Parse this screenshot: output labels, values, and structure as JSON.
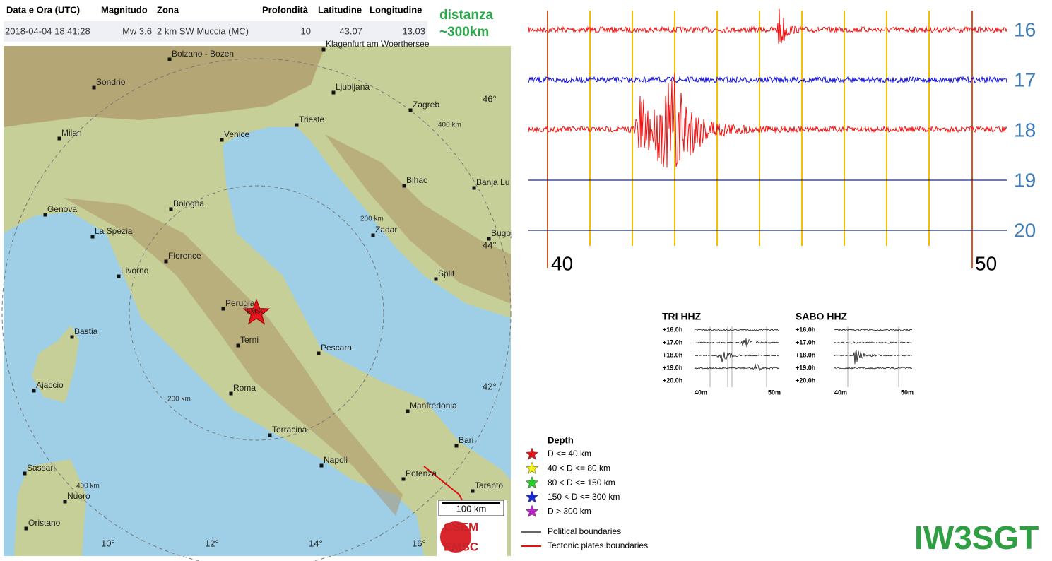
{
  "table": {
    "headers": [
      "Data e Ora (UTC)",
      "Magnitudo",
      "Zona",
      "Profondità",
      "Latitudine",
      "Longitudine"
    ],
    "rows": [
      [
        "2018-04-04 18:41:28",
        "Mw 3.6",
        "2 km SW Muccia (MC)",
        "10",
        "43.07",
        "13.03"
      ]
    ]
  },
  "annotation": [
    "distanza",
    "~300km"
  ],
  "map": {
    "cities": [
      "Bolzano - Bozen",
      "Klagenfurt am Woerthersee",
      "Sondrio",
      "Ljubljana",
      "Zagreb",
      "Trieste",
      "Milan",
      "Venice",
      "Bihac",
      "Banja Lu",
      "Genova",
      "Bologna",
      "Zadar",
      "La Spezia",
      "Bugoj",
      "Florence",
      "Livorno",
      "Split",
      "Perugia",
      "Bastia",
      "Terni",
      "Pescara",
      "Ajaccio",
      "Roma",
      "Manfredonia",
      "Terracina",
      "Bari",
      "Napoli",
      "Sassari",
      "Potenza",
      "Taranto",
      "Nuoro",
      "Oristano"
    ],
    "parallels": [
      "46°",
      "44°",
      "42°"
    ],
    "meridians": [
      "10°",
      "12°",
      "14°",
      "16°"
    ],
    "ring_labels": [
      "400 km",
      "200 km",
      "200 km",
      "400 km"
    ],
    "epicenter_label": "EMSC",
    "scale": "100 km"
  },
  "legend": {
    "title": "Depth",
    "items": [
      {
        "label": "D <= 40 km",
        "color": "#e4161b"
      },
      {
        "label": "40 < D <= 80 km",
        "color": "#f2f21a"
      },
      {
        "label": "80 < D <= 150 km",
        "color": "#25d025"
      },
      {
        "label": "150 < D <= 300 km",
        "color": "#1a28d8"
      },
      {
        "label": "D > 300 km",
        "color": "#c020d0"
      }
    ],
    "boundaries": [
      {
        "label": "Political boundaries",
        "color": "#666666"
      },
      {
        "label": "Tectonic plates boundaries",
        "color": "#e01010"
      }
    ]
  },
  "logo": [
    "CSEM",
    "EMSC"
  ],
  "seismogram": {
    "hours": [
      "16",
      "17",
      "18",
      "19",
      "20"
    ],
    "minutes": [
      "40",
      "50"
    ]
  },
  "helicorders": [
    {
      "title": "TRI HHZ",
      "rows": [
        "+16.0h",
        "+17.0h",
        "+18.0h",
        "+19.0h",
        "+20.0h"
      ],
      "minutes": [
        "40m",
        "50m"
      ]
    },
    {
      "title": "SABO HHZ",
      "rows": [
        "+16.0h",
        "+17.0h",
        "+18.0h",
        "+19.0h",
        "+20.0h"
      ],
      "minutes": [
        "40m",
        "50m"
      ]
    }
  ],
  "callsign": "IW3SGT"
}
